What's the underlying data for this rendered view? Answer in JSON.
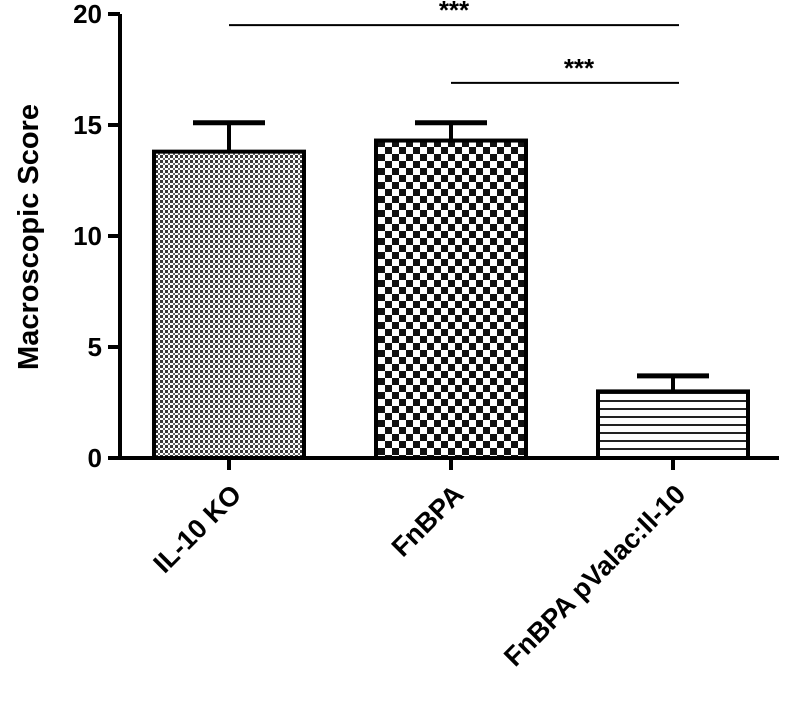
{
  "chart_data": {
    "type": "bar",
    "title": "",
    "xlabel": "",
    "ylabel": "Macroscopic Score",
    "ylim": [
      0,
      20
    ],
    "yticks": [
      0,
      5,
      10,
      15,
      20
    ],
    "grid": false,
    "categories": [
      "IL-10 KO",
      "FnBPA",
      "FnBPA pValac:Il-10"
    ],
    "values": [
      13.8,
      14.3,
      3.0
    ],
    "errors": [
      1.3,
      0.8,
      0.7
    ],
    "patterns": [
      "dense-crosshatch",
      "checkerboard",
      "horizontal-stripes"
    ],
    "significance": [
      {
        "from": 0,
        "to": 2,
        "label": "***",
        "y": 19.5
      },
      {
        "from": 1,
        "to": 2,
        "label": "***",
        "y": 16.9
      }
    ]
  }
}
